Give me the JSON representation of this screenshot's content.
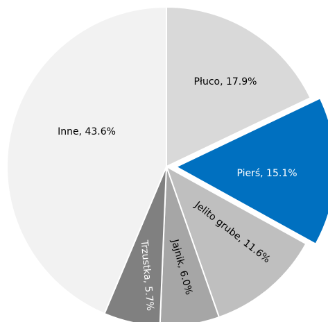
{
  "chart_data": {
    "type": "pie",
    "values": [
      17.9,
      15.1,
      11.6,
      6.0,
      5.7,
      43.6
    ],
    "value_labels": [
      "Płuco, 17.9%",
      "Pierś, 15.1%",
      "Jelito grube, 11.6%",
      "Jajnik, 6.0%",
      "Trzustka, 5.7%",
      "Inne, 43.6%"
    ],
    "colors": [
      "#d9d9d9",
      "#0070c0",
      "#bfbfbf",
      "#a6a6a6",
      "#808080",
      "#f2f2f2"
    ],
    "label_colors": [
      "#000000",
      "#ffffff",
      "#000000",
      "#000000",
      "#ffffff",
      "#000000"
    ]
  }
}
